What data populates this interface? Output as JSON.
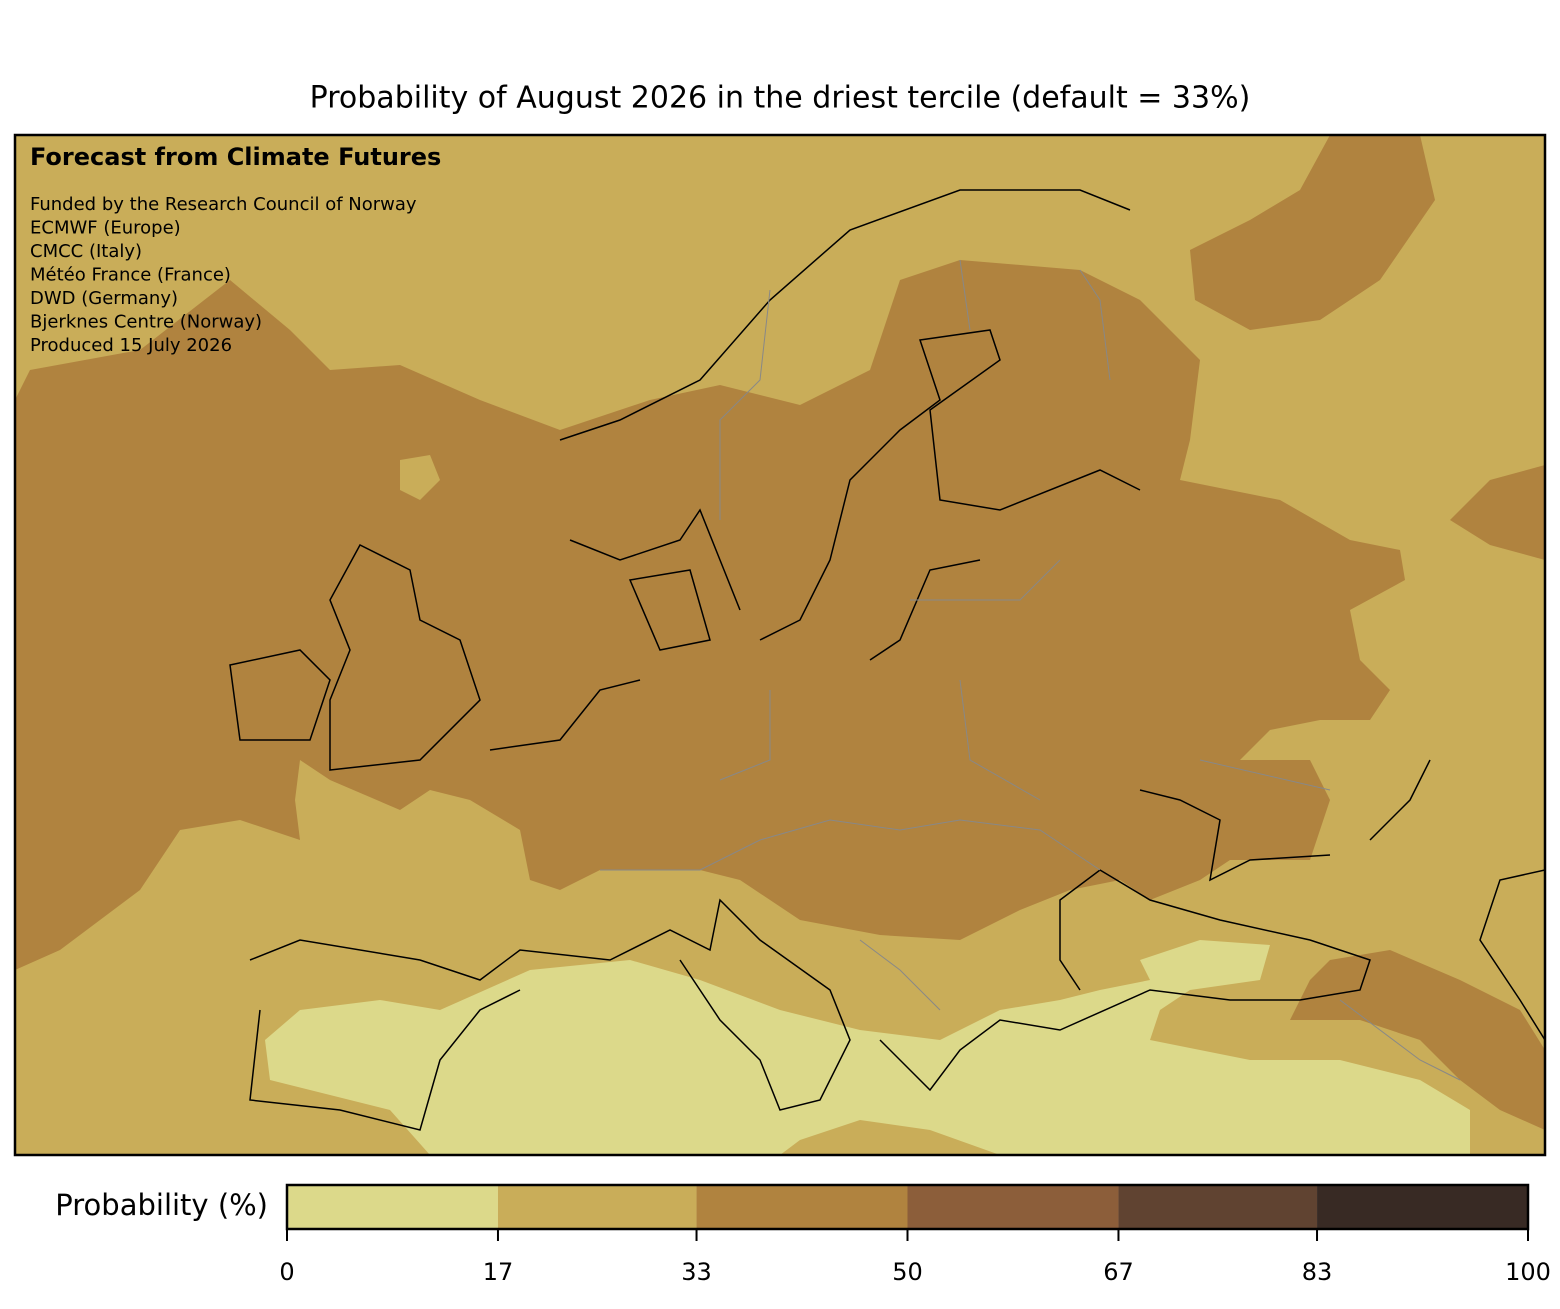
{
  "title": "Probability of August 2026 in the driest tercile (default = 33%)",
  "panel": {
    "heading": "Forecast from Climate Futures",
    "credits": [
      "Funded by the Research Council of Norway",
      "ECMWF (Europe)",
      "CMCC (Italy)",
      "Météo France (France)",
      "DWD (Germany)",
      "Bjerknes Centre (Norway)",
      "Produced 15 July 2026"
    ]
  },
  "colorbar": {
    "label": "Probability (%)",
    "lim": [
      0,
      100
    ],
    "ticks": [
      0,
      17,
      33,
      50,
      67,
      83,
      100
    ],
    "colors": [
      "#dcd98a",
      "#c9ad59",
      "#b0833f",
      "#8c5e3a",
      "#604331",
      "#382a24"
    ]
  }
}
